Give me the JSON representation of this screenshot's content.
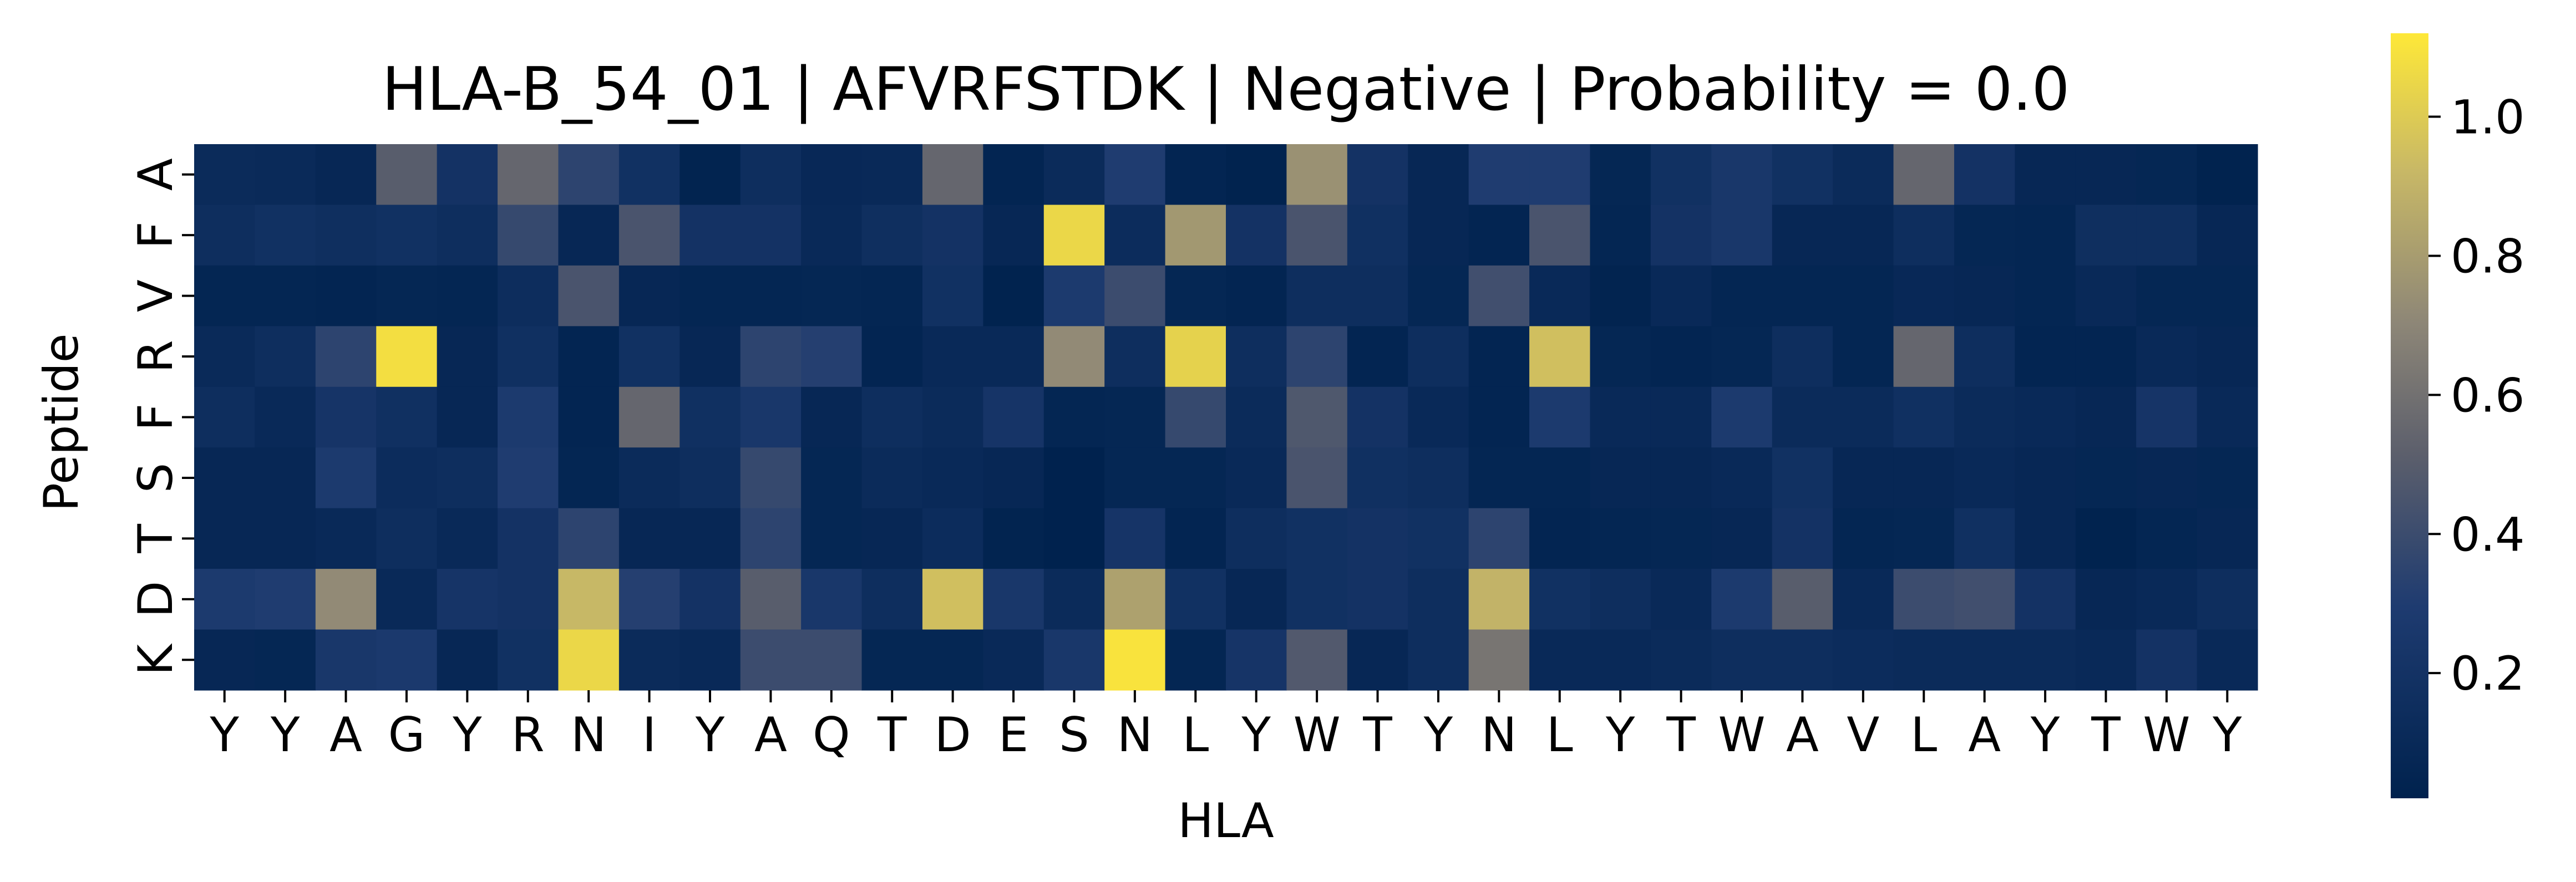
{
  "chart_data": {
    "type": "heatmap",
    "title": "HLA-B_54_01 | AFVRFSTDK | Negative | Probability = 0.0",
    "xlabel": "HLA",
    "ylabel": "Peptide",
    "x_labels": [
      "Y",
      "Y",
      "A",
      "G",
      "Y",
      "R",
      "N",
      "I",
      "Y",
      "A",
      "Q",
      "T",
      "D",
      "E",
      "S",
      "N",
      "L",
      "Y",
      "W",
      "T",
      "Y",
      "N",
      "L",
      "Y",
      "T",
      "W",
      "A",
      "V",
      "L",
      "A",
      "Y",
      "T",
      "W",
      "Y"
    ],
    "y_labels": [
      "A",
      "F",
      "V",
      "R",
      "F",
      "S",
      "T",
      "D",
      "K"
    ],
    "colorbar": {
      "ticks": [
        0.2,
        0.4,
        0.6,
        0.8,
        1.0
      ],
      "range": [
        0.02,
        1.12
      ],
      "colormap": "cividis"
    },
    "values": [
      [
        0.12,
        0.11,
        0.08,
        0.5,
        0.2,
        0.55,
        0.35,
        0.18,
        0.04,
        0.15,
        0.09,
        0.1,
        0.55,
        0.05,
        0.12,
        0.3,
        0.05,
        0.03,
        0.75,
        0.2,
        0.08,
        0.3,
        0.3,
        0.07,
        0.18,
        0.25,
        0.18,
        0.12,
        0.55,
        0.2,
        0.08,
        0.08,
        0.07,
        0.03
      ],
      [
        0.15,
        0.18,
        0.16,
        0.18,
        0.15,
        0.38,
        0.08,
        0.45,
        0.2,
        0.2,
        0.1,
        0.16,
        0.2,
        0.08,
        1.05,
        0.13,
        0.78,
        0.2,
        0.45,
        0.17,
        0.08,
        0.05,
        0.45,
        0.06,
        0.2,
        0.25,
        0.08,
        0.08,
        0.15,
        0.07,
        0.06,
        0.16,
        0.16,
        0.08
      ],
      [
        0.06,
        0.06,
        0.05,
        0.07,
        0.06,
        0.14,
        0.45,
        0.08,
        0.06,
        0.06,
        0.07,
        0.06,
        0.18,
        0.03,
        0.28,
        0.4,
        0.07,
        0.05,
        0.15,
        0.15,
        0.07,
        0.42,
        0.1,
        0.04,
        0.1,
        0.06,
        0.06,
        0.06,
        0.09,
        0.08,
        0.06,
        0.1,
        0.07,
        0.07
      ],
      [
        0.11,
        0.15,
        0.35,
        1.08,
        0.08,
        0.17,
        0.05,
        0.18,
        0.08,
        0.35,
        0.32,
        0.05,
        0.1,
        0.1,
        0.72,
        0.15,
        1.03,
        0.15,
        0.35,
        0.05,
        0.15,
        0.05,
        0.95,
        0.07,
        0.05,
        0.07,
        0.15,
        0.06,
        0.55,
        0.15,
        0.05,
        0.05,
        0.1,
        0.08
      ],
      [
        0.15,
        0.1,
        0.22,
        0.17,
        0.08,
        0.28,
        0.05,
        0.55,
        0.17,
        0.25,
        0.08,
        0.15,
        0.12,
        0.22,
        0.06,
        0.07,
        0.38,
        0.12,
        0.47,
        0.2,
        0.1,
        0.05,
        0.28,
        0.1,
        0.1,
        0.28,
        0.12,
        0.12,
        0.17,
        0.12,
        0.1,
        0.08,
        0.22,
        0.1
      ],
      [
        0.08,
        0.08,
        0.28,
        0.13,
        0.15,
        0.3,
        0.06,
        0.12,
        0.15,
        0.38,
        0.07,
        0.12,
        0.1,
        0.08,
        0.02,
        0.07,
        0.07,
        0.1,
        0.45,
        0.17,
        0.15,
        0.06,
        0.06,
        0.08,
        0.08,
        0.1,
        0.18,
        0.08,
        0.08,
        0.1,
        0.08,
        0.07,
        0.08,
        0.07
      ],
      [
        0.08,
        0.08,
        0.1,
        0.15,
        0.1,
        0.2,
        0.35,
        0.08,
        0.08,
        0.35,
        0.07,
        0.08,
        0.13,
        0.04,
        0.02,
        0.22,
        0.05,
        0.15,
        0.18,
        0.2,
        0.18,
        0.35,
        0.05,
        0.06,
        0.07,
        0.08,
        0.2,
        0.06,
        0.07,
        0.17,
        0.08,
        0.03,
        0.06,
        0.08
      ],
      [
        0.28,
        0.3,
        0.72,
        0.1,
        0.22,
        0.2,
        0.92,
        0.32,
        0.2,
        0.5,
        0.25,
        0.15,
        0.95,
        0.25,
        0.12,
        0.82,
        0.18,
        0.08,
        0.18,
        0.2,
        0.15,
        0.9,
        0.18,
        0.15,
        0.1,
        0.28,
        0.5,
        0.1,
        0.4,
        0.42,
        0.2,
        0.08,
        0.1,
        0.15
      ],
      [
        0.08,
        0.07,
        0.25,
        0.27,
        0.08,
        0.18,
        1.05,
        0.12,
        0.1,
        0.4,
        0.4,
        0.07,
        0.07,
        0.1,
        0.25,
        1.1,
        0.06,
        0.22,
        0.48,
        0.08,
        0.15,
        0.62,
        0.1,
        0.1,
        0.12,
        0.15,
        0.15,
        0.13,
        0.12,
        0.12,
        0.12,
        0.1,
        0.2,
        0.1
      ]
    ]
  }
}
